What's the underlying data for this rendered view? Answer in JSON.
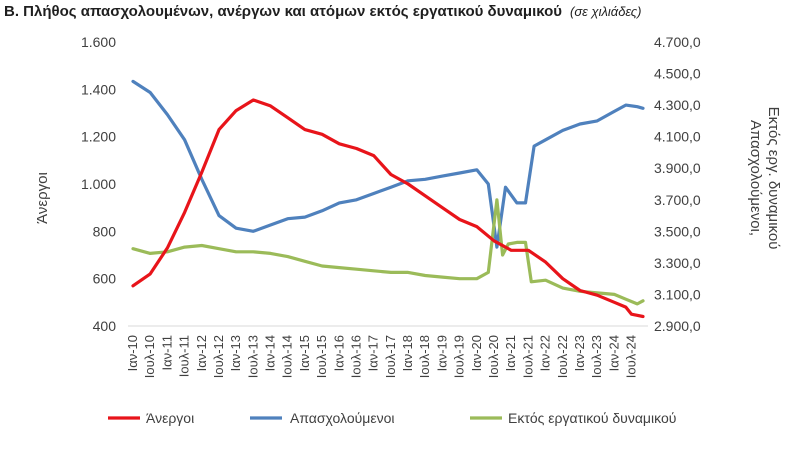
{
  "chart_data": {
    "type": "line",
    "title": "Β. Πλήθος απασχολουμένων, ανέργων και ατόμων εκτός εργατικού δυναμικού",
    "subtitle": "(σε χιλιάδες)",
    "ylabel_left": "Άνεργοι",
    "ylabel_right_line1": "Απασχολούμενοι,",
    "ylabel_right_line2": "Εκτός εργ. δυναμικού",
    "ylim_left": [
      400,
      1600
    ],
    "ylim_right": [
      2900,
      4700
    ],
    "yticks_left": [
      "1.600",
      "1.400",
      "1.200",
      "1.000",
      "800",
      "600",
      "400"
    ],
    "yticks_right": [
      "4.700,0",
      "4.500,0",
      "4.300,0",
      "4.100,0",
      "3.900,0",
      "3.700,0",
      "3.500,0",
      "3.300,0",
      "3.100,0",
      "2.900,0"
    ],
    "xticks": [
      "Ιαν-10",
      "Ιουλ-10",
      "Ιαν-11",
      "Ιουλ-11",
      "Ιαν-12",
      "Ιουλ-12",
      "Ιαν-13",
      "Ιουλ-13",
      "Ιαν-14",
      "Ιουλ-14",
      "Ιαν-15",
      "Ιουλ-15",
      "Ιαν-16",
      "Ιουλ-16",
      "Ιαν-17",
      "Ιουλ-17",
      "Ιαν-18",
      "Ιουλ-18",
      "Ιαν-19",
      "Ιουλ-19",
      "Ιαν-20",
      "Ιουλ-20",
      "Ιαν-21",
      "Ιουλ-21",
      "Ιαν-22",
      "Ιουλ-22",
      "Ιαν-23",
      "Ιουλ-23",
      "Ιαν-24",
      "Ιουλ-24"
    ],
    "x_note": "x values are month index from Ιαν-10 (0) to Νοε-24 (178)",
    "legend_position": "bottom",
    "grid": false,
    "series": [
      {
        "name": "Άνεργοι",
        "axis": "left",
        "color": "#e8141a",
        "points": [
          [
            0,
            570
          ],
          [
            6,
            620
          ],
          [
            12,
            730
          ],
          [
            18,
            880
          ],
          [
            24,
            1050
          ],
          [
            30,
            1230
          ],
          [
            36,
            1310
          ],
          [
            42,
            1355
          ],
          [
            48,
            1330
          ],
          [
            54,
            1280
          ],
          [
            60,
            1230
          ],
          [
            66,
            1210
          ],
          [
            72,
            1170
          ],
          [
            78,
            1150
          ],
          [
            84,
            1120
          ],
          [
            90,
            1040
          ],
          [
            96,
            1000
          ],
          [
            102,
            950
          ],
          [
            108,
            900
          ],
          [
            114,
            850
          ],
          [
            120,
            820
          ],
          [
            126,
            760
          ],
          [
            132,
            720
          ],
          [
            138,
            720
          ],
          [
            144,
            670
          ],
          [
            150,
            600
          ],
          [
            156,
            550
          ],
          [
            162,
            530
          ],
          [
            168,
            500
          ],
          [
            172,
            480
          ],
          [
            174,
            450
          ],
          [
            178,
            440
          ]
        ]
      },
      {
        "name": "Απασχολούμενοι",
        "axis": "right",
        "color": "#4f81bd",
        "points": [
          [
            0,
            4450
          ],
          [
            6,
            4380
          ],
          [
            12,
            4240
          ],
          [
            18,
            4080
          ],
          [
            24,
            3830
          ],
          [
            30,
            3600
          ],
          [
            36,
            3520
          ],
          [
            42,
            3500
          ],
          [
            48,
            3540
          ],
          [
            54,
            3580
          ],
          [
            60,
            3590
          ],
          [
            66,
            3630
          ],
          [
            72,
            3680
          ],
          [
            78,
            3700
          ],
          [
            84,
            3740
          ],
          [
            90,
            3780
          ],
          [
            96,
            3820
          ],
          [
            102,
            3830
          ],
          [
            108,
            3850
          ],
          [
            114,
            3870
          ],
          [
            120,
            3890
          ],
          [
            124,
            3800
          ],
          [
            127,
            3400
          ],
          [
            130,
            3780
          ],
          [
            134,
            3680
          ],
          [
            137,
            3680
          ],
          [
            140,
            4040
          ],
          [
            144,
            4080
          ],
          [
            150,
            4140
          ],
          [
            156,
            4180
          ],
          [
            162,
            4200
          ],
          [
            168,
            4260
          ],
          [
            172,
            4300
          ],
          [
            176,
            4290
          ],
          [
            178,
            4280
          ]
        ]
      },
      {
        "name": "Εκτός εργατικού δυναμικού",
        "axis": "right",
        "color": "#9bbb59",
        "points": [
          [
            0,
            3390
          ],
          [
            6,
            3360
          ],
          [
            12,
            3370
          ],
          [
            18,
            3400
          ],
          [
            24,
            3410
          ],
          [
            30,
            3390
          ],
          [
            36,
            3370
          ],
          [
            42,
            3370
          ],
          [
            48,
            3360
          ],
          [
            54,
            3340
          ],
          [
            60,
            3310
          ],
          [
            66,
            3280
          ],
          [
            72,
            3270
          ],
          [
            78,
            3260
          ],
          [
            84,
            3250
          ],
          [
            90,
            3240
          ],
          [
            96,
            3240
          ],
          [
            102,
            3220
          ],
          [
            108,
            3210
          ],
          [
            114,
            3200
          ],
          [
            120,
            3200
          ],
          [
            124,
            3240
          ],
          [
            127,
            3700
          ],
          [
            129,
            3350
          ],
          [
            131,
            3420
          ],
          [
            134,
            3430
          ],
          [
            137,
            3430
          ],
          [
            139,
            3180
          ],
          [
            144,
            3190
          ],
          [
            150,
            3140
          ],
          [
            156,
            3120
          ],
          [
            162,
            3110
          ],
          [
            168,
            3100
          ],
          [
            172,
            3070
          ],
          [
            176,
            3040
          ],
          [
            178,
            3060
          ]
        ]
      }
    ]
  }
}
